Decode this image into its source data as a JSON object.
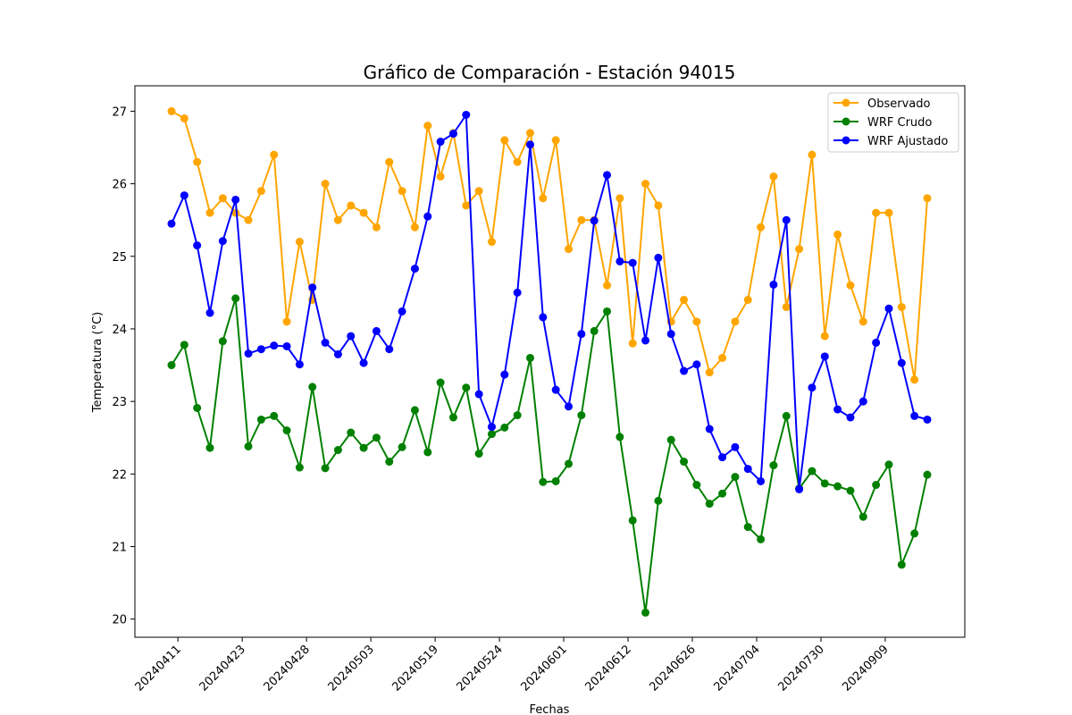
{
  "chart_data": {
    "type": "line",
    "title": "Gráfico de Comparación - Estación 94015",
    "xlabel": "Fechas",
    "ylabel": "Temperatura (°C)",
    "ylim": [
      19.75,
      27.35
    ],
    "yticks": [
      20,
      21,
      22,
      23,
      24,
      25,
      26,
      27
    ],
    "xtick_labels": [
      "20240411",
      "20240423",
      "20240428",
      "20240503",
      "20240519",
      "20240524",
      "20240601",
      "20240612",
      "20240626",
      "20240704",
      "20240730",
      "20240909"
    ],
    "legend_position": "top-right",
    "grid": false,
    "series": [
      {
        "name": "Observado",
        "color": "#ffa500",
        "values": [
          27.0,
          26.9,
          26.3,
          25.6,
          25.8,
          25.6,
          25.5,
          25.9,
          26.4,
          24.1,
          25.2,
          24.4,
          26.0,
          25.5,
          25.7,
          25.6,
          25.4,
          26.3,
          25.9,
          25.4,
          26.8,
          26.1,
          26.7,
          25.7,
          25.9,
          25.2,
          26.6,
          26.3,
          26.7,
          25.8,
          26.6,
          25.1,
          25.5,
          25.5,
          24.6,
          25.8,
          23.8,
          26.0,
          25.7,
          24.1,
          24.4,
          24.1,
          23.4,
          23.6,
          24.1,
          24.4,
          25.4,
          26.1,
          24.3,
          25.1,
          26.4,
          23.9,
          25.3,
          24.6,
          24.1,
          25.6,
          25.6,
          24.3,
          23.3,
          25.8
        ]
      },
      {
        "name": "WRF Crudo",
        "color": "#008000",
        "values": [
          23.5,
          23.78,
          22.91,
          22.36,
          23.83,
          24.42,
          22.38,
          22.75,
          22.8,
          22.6,
          22.09,
          23.2,
          22.08,
          22.33,
          22.57,
          22.36,
          22.5,
          22.17,
          22.37,
          22.88,
          22.3,
          23.26,
          22.78,
          23.19,
          22.28,
          22.55,
          22.64,
          22.81,
          23.6,
          21.89,
          21.9,
          22.14,
          22.81,
          23.97,
          24.24,
          22.51,
          21.36,
          20.09,
          21.63,
          22.47,
          22.17,
          21.85,
          21.59,
          21.73,
          21.96,
          21.27,
          21.1,
          22.12,
          22.8,
          21.8,
          22.04,
          21.87,
          21.83,
          21.77,
          21.41,
          21.85,
          22.13,
          20.75,
          21.18,
          21.99
        ]
      },
      {
        "name": "WRF Ajustado",
        "color": "#0000ff",
        "values": [
          25.45,
          25.84,
          25.15,
          24.22,
          25.21,
          25.78,
          23.66,
          23.72,
          23.77,
          23.76,
          23.51,
          24.57,
          23.81,
          23.65,
          23.9,
          23.53,
          23.97,
          23.72,
          24.24,
          24.83,
          25.55,
          26.58,
          26.69,
          26.95,
          23.1,
          22.65,
          23.37,
          24.5,
          26.54,
          24.16,
          23.16,
          22.93,
          23.93,
          25.49,
          26.12,
          24.93,
          24.91,
          23.84,
          24.98,
          23.93,
          23.42,
          23.51,
          22.62,
          22.23,
          22.37,
          22.07,
          21.9,
          24.61,
          25.5,
          21.79,
          23.19,
          23.62,
          22.89,
          22.78,
          23.0,
          23.81,
          24.28,
          23.53,
          22.8,
          22.75
        ]
      }
    ]
  }
}
